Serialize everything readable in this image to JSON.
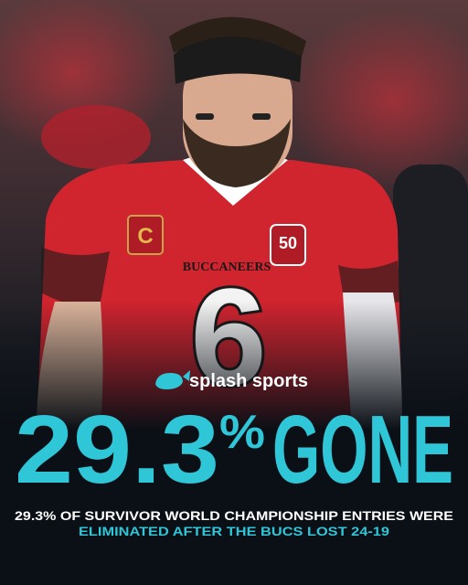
{
  "photo": {
    "team": "BUCCANEERS",
    "number": "6",
    "captain": "C",
    "patch": "50"
  },
  "brand": {
    "name": "splash sports"
  },
  "headline": {
    "number": "29.3",
    "unit": "%",
    "word": "GONE"
  },
  "subtitle": {
    "line1": "29.3% OF SURVIVOR WORLD CHAMPIONSHIP ENTRIES WERE",
    "line2": "ELIMINATED AFTER THE BUCS LOST 24-19"
  }
}
